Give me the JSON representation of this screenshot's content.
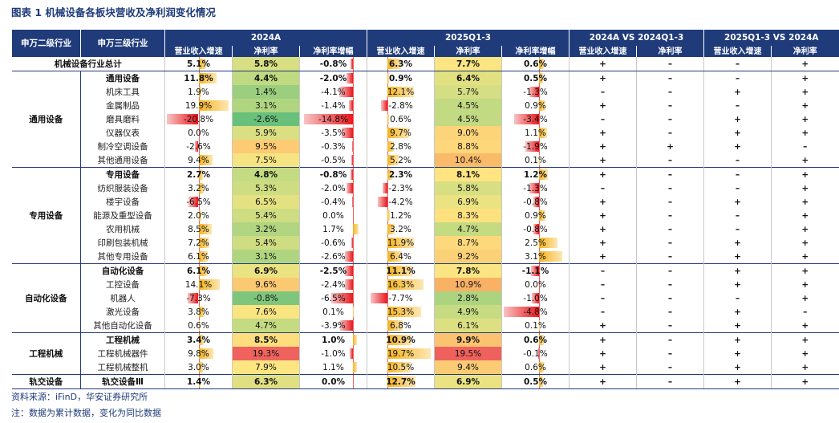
{
  "title": "图表 1 机械设备各板块营收及净利润变化情况",
  "header": {
    "col_l2": "申万二级行业",
    "col_l3": "申万三级行业",
    "group_2024": "2024A",
    "group_2025": "2025Q1-3",
    "group_cmp1": "2024A VS 2024Q1-3",
    "group_cmp2": "2025Q1-3 VS 2024A",
    "sub_rev": "营业收入增速",
    "sub_margin": "净利率",
    "sub_growth": "净利率增幅"
  },
  "rows": [
    {
      "l2": "",
      "l3": "机械设备行业总计",
      "bold": true,
      "total": true,
      "v": [
        "5.1%",
        "5.8%",
        "-0.8%",
        "6.3%",
        "7.7%",
        "0.6%"
      ],
      "c": [
        "+",
        "–",
        "–",
        "+"
      ]
    },
    {
      "l2": "通用设备",
      "span": 7,
      "l3": "通用设备",
      "bold": true,
      "v": [
        "11.8%",
        "4.4%",
        "-2.0%",
        "0.9%",
        "6.4%",
        "0.5%"
      ],
      "c": [
        "+",
        "–",
        "–",
        "+"
      ]
    },
    {
      "l3": "机床工具",
      "v": [
        "1.9%",
        "1.4%",
        "-4.1%",
        "12.1%",
        "5.7%",
        "-1.3%"
      ],
      "c": [
        "–",
        "–",
        "+",
        "+"
      ]
    },
    {
      "l3": "金属制品",
      "v": [
        "19.9%",
        "3.1%",
        "-1.4%",
        "-2.8%",
        "4.5%",
        "0.9%"
      ],
      "c": [
        "+",
        "–",
        "–",
        "+"
      ]
    },
    {
      "l3": "磨具磨料",
      "v": [
        "-20.8%",
        "-2.6%",
        "-14.8%",
        "0.6%",
        "4.5%",
        "-3.4%"
      ],
      "c": [
        "–",
        "–",
        "+",
        "+"
      ]
    },
    {
      "l3": "仪器仪表",
      "v": [
        "0.0%",
        "5.9%",
        "-3.5%",
        "9.7%",
        "9.0%",
        "1.1%"
      ],
      "c": [
        "+",
        "–",
        "+",
        "+"
      ]
    },
    {
      "l3": "制冷空调设备",
      "v": [
        "-2.6%",
        "9.5%",
        "-0.3%",
        "2.8%",
        "8.8%",
        "-1.9%"
      ],
      "c": [
        "+",
        "+",
        "+",
        "–"
      ]
    },
    {
      "l3": "其他通用设备",
      "v": [
        "9.4%",
        "7.5%",
        "-0.5%",
        "5.2%",
        "10.4%",
        "0.1%"
      ],
      "c": [
        "+",
        "–",
        "–",
        "+"
      ]
    },
    {
      "l2": "专用设备",
      "span": 7,
      "l3": "专用设备",
      "bold": true,
      "v": [
        "2.7%",
        "4.8%",
        "-0.8%",
        "2.3%",
        "8.1%",
        "1.2%"
      ],
      "c": [
        "+",
        "–",
        "–",
        "+"
      ]
    },
    {
      "l3": "纺织服装设备",
      "v": [
        "3.2%",
        "5.3%",
        "-2.0%",
        "-2.3%",
        "5.8%",
        "-1.3%"
      ],
      "c": [
        "–",
        "–",
        "–",
        "+"
      ]
    },
    {
      "l3": "楼宇设备",
      "v": [
        "-6.5%",
        "6.5%",
        "-0.4%",
        "-4.2%",
        "6.9%",
        "-0.8%"
      ],
      "c": [
        "+",
        "–",
        "+",
        "+"
      ]
    },
    {
      "l3": "能源及重型设备",
      "v": [
        "2.0%",
        "5.4%",
        "0.0%",
        "1.2%",
        "8.3%",
        "0.9%"
      ],
      "c": [
        "+",
        "–",
        "–",
        "+"
      ]
    },
    {
      "l3": "农用机械",
      "v": [
        "8.5%",
        "3.2%",
        "1.7%",
        "3.2%",
        "4.7%",
        "-0.8%"
      ],
      "c": [
        "+",
        "–",
        "–",
        "+"
      ]
    },
    {
      "l3": "印刷包装机械",
      "v": [
        "7.2%",
        "5.4%",
        "-0.6%",
        "11.9%",
        "8.7%",
        "2.5%"
      ],
      "c": [
        "+",
        "–",
        "+",
        "+"
      ]
    },
    {
      "l3": "其他专用设备",
      "v": [
        "6.1%",
        "3.1%",
        "-2.6%",
        "6.4%",
        "9.2%",
        "3.1%"
      ],
      "c": [
        "+",
        "–",
        "+",
        "+"
      ]
    },
    {
      "l2": "自动化设备",
      "span": 5,
      "l3": "自动化设备",
      "bold": true,
      "v": [
        "6.1%",
        "6.9%",
        "-2.5%",
        "11.1%",
        "7.8%",
        "-1.1%"
      ],
      "c": [
        "–",
        "–",
        "+",
        "+"
      ]
    },
    {
      "l3": "工控设备",
      "v": [
        "14.1%",
        "9.6%",
        "-2.4%",
        "16.3%",
        "10.9%",
        "0.0%"
      ],
      "c": [
        "–",
        "–",
        "+",
        "+"
      ]
    },
    {
      "l3": "机器人",
      "v": [
        "-7.3%",
        "-0.8%",
        "-6.5%",
        "-7.7%",
        "2.8%",
        "-1.0%"
      ],
      "c": [
        "–",
        "–",
        "–",
        "+"
      ]
    },
    {
      "l3": "激光设备",
      "v": [
        "3.8%",
        "7.6%",
        "0.1%",
        "15.3%",
        "4.9%",
        "-4.8%"
      ],
      "c": [
        "–",
        "–",
        "+",
        "–"
      ]
    },
    {
      "l3": "其他自动化设备",
      "v": [
        "0.6%",
        "4.7%",
        "-3.9%",
        "6.8%",
        "6.1%",
        "0.1%"
      ],
      "c": [
        "+",
        "–",
        "+",
        "+"
      ]
    },
    {
      "l2": "工程机械",
      "span": 3,
      "l3": "工程机械",
      "bold": true,
      "v": [
        "3.4%",
        "8.5%",
        "1.0%",
        "10.9%",
        "9.9%",
        "0.6%"
      ],
      "c": [
        "+",
        "–",
        "+",
        "+"
      ]
    },
    {
      "l3": "工程机械器件",
      "v": [
        "9.8%",
        "19.3%",
        "-1.0%",
        "19.7%",
        "19.5%",
        "-0.1%"
      ],
      "c": [
        "+",
        "–",
        "+",
        "+"
      ]
    },
    {
      "l3": "工程机械整机",
      "v": [
        "3.0%",
        "7.9%",
        "1.1%",
        "10.5%",
        "9.4%",
        "0.6%"
      ],
      "c": [
        "+",
        "–",
        "+",
        "+"
      ]
    },
    {
      "l2": "轨交设备",
      "span": 1,
      "l3": "轨交设备Ⅲ",
      "bold": true,
      "v": [
        "1.4%",
        "6.3%",
        "0.0%",
        "12.7%",
        "6.9%",
        "0.5%"
      ],
      "c": [
        "+",
        "–",
        "+",
        "+"
      ]
    }
  ],
  "source": "资料来源：iFinD，华安证券研究所",
  "note": "注：数据为累计数据，变化为同比数据"
}
